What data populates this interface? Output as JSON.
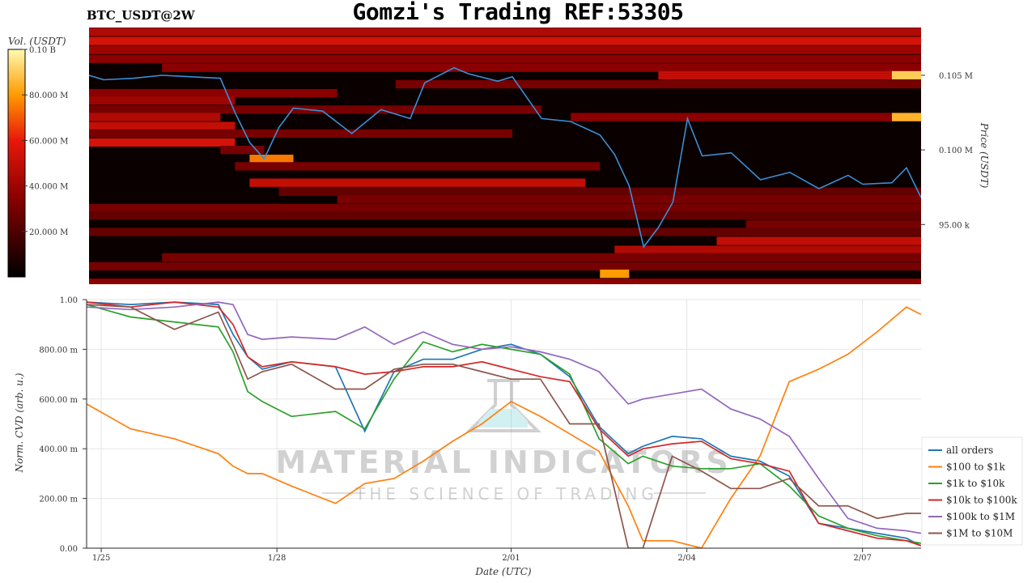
{
  "title": "Gomzi's Trading REF:53305",
  "ticker": "BTC_USDT@2W",
  "watermark": {
    "line1": "MATERIAL INDICATORS",
    "line2": "THE SCIENCE OF TRADING"
  },
  "chart_data": [
    {
      "type": "heatmap",
      "name": "orderbook-heatmap",
      "colorbar": {
        "label": "Vol. (USDT)",
        "range": [
          0,
          100000000
        ],
        "tick_labels": [
          "0.10 B",
          "80.000 M",
          "60.000 M",
          "40.000 M",
          "20.000 M"
        ],
        "tick_values": [
          100000000,
          80000000,
          60000000,
          40000000,
          20000000
        ]
      },
      "ylabel": "Price (USDT)",
      "ylim": [
        91000,
        108200
      ],
      "y_tick_labels": [
        "0.105 M",
        "0.100 M",
        "95.00 k"
      ],
      "y_tick_values": [
        105000,
        100000,
        95000
      ],
      "xlim": [
        "2025-01-24T18:00",
        "2025-02-08T00:00"
      ],
      "bands": [
        {
          "price": 107900,
          "x": [
            "2025-01-24T18:00",
            "2025-02-08T00:00"
          ],
          "level": 0.45
        },
        {
          "price": 107300,
          "x": [
            "2025-01-24T18:00",
            "2025-02-08T00:00"
          ],
          "level": 0.55
        },
        {
          "price": 106700,
          "x": [
            "2025-01-24T18:00",
            "2025-02-08T00:00"
          ],
          "level": 0.4
        },
        {
          "price": 106100,
          "x": [
            "2025-01-24T18:00",
            "2025-02-08T00:00"
          ],
          "level": 0.35
        },
        {
          "price": 105500,
          "x": [
            "2025-01-26T00:00",
            "2025-02-08T00:00"
          ],
          "level": 0.35
        },
        {
          "price": 105000,
          "x": [
            "2025-02-03T12:00",
            "2025-02-08T00:00"
          ],
          "level": 0.5
        },
        {
          "price": 105000,
          "x": [
            "2025-02-07T12:00",
            "2025-02-08T00:00"
          ],
          "level": 0.9
        },
        {
          "price": 104400,
          "x": [
            "2025-01-30T00:00",
            "2025-02-08T00:00"
          ],
          "level": 0.3
        },
        {
          "price": 103800,
          "x": [
            "2025-01-24T18:00",
            "2025-01-29T00:00"
          ],
          "level": 0.35
        },
        {
          "price": 103300,
          "x": [
            "2025-01-24T18:00",
            "2025-01-27T06:00"
          ],
          "level": 0.4
        },
        {
          "price": 102700,
          "x": [
            "2025-01-24T18:00",
            "2025-02-01T12:00"
          ],
          "level": 0.3
        },
        {
          "price": 102200,
          "x": [
            "2025-01-24T18:00",
            "2025-01-27T00:00"
          ],
          "level": 0.45
        },
        {
          "price": 102200,
          "x": [
            "2025-02-02T00:00",
            "2025-02-08T00:00"
          ],
          "level": 0.35
        },
        {
          "price": 102200,
          "x": [
            "2025-02-07T12:00",
            "2025-02-08T00:00"
          ],
          "level": 0.85
        },
        {
          "price": 101600,
          "x": [
            "2025-01-24T18:00",
            "2025-01-27T06:00"
          ],
          "level": 0.5
        },
        {
          "price": 101100,
          "x": [
            "2025-01-24T18:00",
            "2025-02-01T00:00"
          ],
          "level": 0.3
        },
        {
          "price": 100500,
          "x": [
            "2025-01-24T18:00",
            "2025-01-27T06:00"
          ],
          "level": 0.55
        },
        {
          "price": 100000,
          "x": [
            "2025-01-27T00:00",
            "2025-01-27T18:00"
          ],
          "level": 0.3
        },
        {
          "price": 99400,
          "x": [
            "2025-01-27T12:00",
            "2025-01-28T06:00"
          ],
          "level": 0.75
        },
        {
          "price": 98900,
          "x": [
            "2025-01-27T06:00",
            "2025-02-02T12:00"
          ],
          "level": 0.3
        },
        {
          "price": 97800,
          "x": [
            "2025-01-27T12:00",
            "2025-02-02T06:00"
          ],
          "level": 0.5
        },
        {
          "price": 97200,
          "x": [
            "2025-01-28T00:00",
            "2025-02-08T00:00"
          ],
          "level": 0.25
        },
        {
          "price": 96700,
          "x": [
            "2025-01-29T00:00",
            "2025-02-08T00:00"
          ],
          "level": 0.3
        },
        {
          "price": 96100,
          "x": [
            "2025-01-24T18:00",
            "2025-02-08T00:00"
          ],
          "level": 0.3
        },
        {
          "price": 95600,
          "x": [
            "2025-01-24T18:00",
            "2025-02-08T00:00"
          ],
          "level": 0.25
        },
        {
          "price": 95000,
          "x": [
            "2025-02-05T00:00",
            "2025-02-08T00:00"
          ],
          "level": 0.3
        },
        {
          "price": 94500,
          "x": [
            "2025-01-24T18:00",
            "2025-02-08T00:00"
          ],
          "level": 0.25
        },
        {
          "price": 93900,
          "x": [
            "2025-02-04T12:00",
            "2025-02-08T00:00"
          ],
          "level": 0.5
        },
        {
          "price": 93300,
          "x": [
            "2025-02-02T18:00",
            "2025-02-08T00:00"
          ],
          "level": 0.45
        },
        {
          "price": 92800,
          "x": [
            "2025-01-26T00:00",
            "2025-02-08T00:00"
          ],
          "level": 0.3
        },
        {
          "price": 92200,
          "x": [
            "2025-01-24T18:00",
            "2025-02-08T00:00"
          ],
          "level": 0.3
        },
        {
          "price": 91700,
          "x": [
            "2025-02-02T12:00",
            "2025-02-03T00:00"
          ],
          "level": 0.8
        },
        {
          "price": 91100,
          "x": [
            "2025-01-24T18:00",
            "2025-02-08T00:00"
          ],
          "level": 0.35
        }
      ],
      "price_series": {
        "name": "Price",
        "color": "#3a8fd6",
        "x": [
          "2025-01-24T18:00",
          "2025-01-25T00:00",
          "2025-01-25T12:00",
          "2025-01-26T00:00",
          "2025-01-26T12:00",
          "2025-01-27T00:00",
          "2025-01-27T06:00",
          "2025-01-27T12:00",
          "2025-01-27T18:00",
          "2025-01-28T00:00",
          "2025-01-28T06:00",
          "2025-01-28T18:00",
          "2025-01-29T06:00",
          "2025-01-29T18:00",
          "2025-01-30T06:00",
          "2025-01-30T12:00",
          "2025-01-31T00:00",
          "2025-01-31T06:00",
          "2025-01-31T18:00",
          "2025-02-01T00:00",
          "2025-02-01T12:00",
          "2025-02-02T00:00",
          "2025-02-02T12:00",
          "2025-02-02T18:00",
          "2025-02-03T00:00",
          "2025-02-03T06:00",
          "2025-02-03T12:00",
          "2025-02-03T18:00",
          "2025-02-04T00:00",
          "2025-02-04T06:00",
          "2025-02-04T18:00",
          "2025-02-05T06:00",
          "2025-02-05T18:00",
          "2025-02-06T06:00",
          "2025-02-06T18:00",
          "2025-02-07T00:00",
          "2025-02-07T12:00",
          "2025-02-07T18:00",
          "2025-02-08T00:00"
        ],
        "y": [
          105000,
          104700,
          104800,
          105000,
          104900,
          104800,
          102500,
          100500,
          99400,
          101500,
          102800,
          102600,
          101100,
          102700,
          102100,
          104500,
          105500,
          105100,
          104600,
          104900,
          102100,
          101900,
          101000,
          99700,
          97600,
          93500,
          94800,
          96500,
          102100,
          99600,
          99800,
          98000,
          98500,
          97400,
          98300,
          97700,
          97800,
          98800,
          96800
        ]
      }
    },
    {
      "type": "line",
      "name": "normalized-cvd",
      "xlabel": "Date (UTC)",
      "ylabel": "Norm. CVD (arb. u.)",
      "ylim": [
        0,
        1
      ],
      "y_tick_labels": [
        "1.00",
        "800.00 m",
        "600.00 m",
        "400.00 m",
        "200.00 m",
        "0.00"
      ],
      "y_tick_values": [
        1,
        0.8,
        0.6,
        0.4,
        0.2,
        0
      ],
      "x_tick_labels": [
        "1/25",
        "1/28",
        "2/01",
        "2/04",
        "2/07"
      ],
      "x_tick_values": [
        "2025-01-25T00:00",
        "2025-01-28T00:00",
        "2025-02-01T00:00",
        "2025-02-04T00:00",
        "2025-02-07T00:00"
      ],
      "xlim": [
        "2025-01-24T18:00",
        "2025-02-08T00:00"
      ],
      "grid": true,
      "legend": "bottom-right",
      "x": [
        "2025-01-24T18:00",
        "2025-01-25T12:00",
        "2025-01-26T06:00",
        "2025-01-27T00:00",
        "2025-01-27T06:00",
        "2025-01-27T12:00",
        "2025-01-27T18:00",
        "2025-01-28T06:00",
        "2025-01-29T00:00",
        "2025-01-29T12:00",
        "2025-01-30T00:00",
        "2025-01-30T12:00",
        "2025-01-31T00:00",
        "2025-01-31T12:00",
        "2025-02-01T00:00",
        "2025-02-01T12:00",
        "2025-02-02T00:00",
        "2025-02-02T12:00",
        "2025-02-03T00:00",
        "2025-02-03T06:00",
        "2025-02-03T18:00",
        "2025-02-04T06:00",
        "2025-02-04T18:00",
        "2025-02-05T06:00",
        "2025-02-05T18:00",
        "2025-02-06T06:00",
        "2025-02-06T18:00",
        "2025-02-07T06:00",
        "2025-02-07T18:00",
        "2025-02-08T00:00"
      ],
      "series": [
        {
          "name": "all orders",
          "color": "#1f77b4",
          "values": [
            0.99,
            0.98,
            0.99,
            0.98,
            0.86,
            0.77,
            0.72,
            0.75,
            0.73,
            0.47,
            0.71,
            0.76,
            0.76,
            0.8,
            0.82,
            0.78,
            0.69,
            0.49,
            0.38,
            0.41,
            0.45,
            0.44,
            0.37,
            0.35,
            0.29,
            0.1,
            0.08,
            0.06,
            0.04,
            0.01
          ]
        },
        {
          "name": "$100 to $1k",
          "color": "#ff7f0e",
          "values": [
            0.58,
            0.48,
            0.44,
            0.38,
            0.33,
            0.3,
            0.3,
            0.25,
            0.18,
            0.26,
            0.28,
            0.35,
            0.43,
            0.5,
            0.59,
            0.53,
            0.46,
            0.39,
            0.17,
            0.03,
            0.03,
            0.0,
            0.2,
            0.37,
            0.67,
            0.72,
            0.78,
            0.87,
            0.97,
            0.94
          ]
        },
        {
          "name": "$1k to $10k",
          "color": "#2ca02c",
          "values": [
            0.98,
            0.93,
            0.91,
            0.89,
            0.79,
            0.63,
            0.59,
            0.53,
            0.55,
            0.48,
            0.68,
            0.83,
            0.79,
            0.82,
            0.8,
            0.78,
            0.7,
            0.44,
            0.34,
            0.37,
            0.33,
            0.32,
            0.32,
            0.34,
            0.25,
            0.13,
            0.08,
            0.05,
            0.03,
            0.02
          ]
        },
        {
          "name": "$10k to $100k",
          "color": "#d62728",
          "values": [
            0.99,
            0.97,
            0.99,
            0.97,
            0.9,
            0.77,
            0.73,
            0.75,
            0.73,
            0.7,
            0.71,
            0.73,
            0.73,
            0.75,
            0.72,
            0.69,
            0.67,
            0.48,
            0.37,
            0.4,
            0.42,
            0.43,
            0.36,
            0.34,
            0.31,
            0.1,
            0.07,
            0.04,
            0.03,
            0.01
          ]
        },
        {
          "name": "$100k to $1M",
          "color": "#9467bd",
          "values": [
            0.97,
            0.96,
            0.97,
            0.99,
            0.98,
            0.86,
            0.84,
            0.85,
            0.84,
            0.89,
            0.82,
            0.87,
            0.82,
            0.8,
            0.81,
            0.79,
            0.76,
            0.71,
            0.58,
            0.6,
            0.62,
            0.64,
            0.56,
            0.52,
            0.45,
            0.28,
            0.12,
            0.08,
            0.07,
            0.06
          ]
        },
        {
          "name": "$1M to $10M",
          "color": "#8c564b",
          "values": [
            0.98,
            0.97,
            0.88,
            0.95,
            0.82,
            0.68,
            0.71,
            0.74,
            0.64,
            0.64,
            0.72,
            0.74,
            0.74,
            0.71,
            0.68,
            0.68,
            0.5,
            0.5,
            0.0,
            0.0,
            0.37,
            0.31,
            0.24,
            0.24,
            0.28,
            0.17,
            0.17,
            0.12,
            0.14,
            0.14
          ]
        }
      ]
    }
  ]
}
